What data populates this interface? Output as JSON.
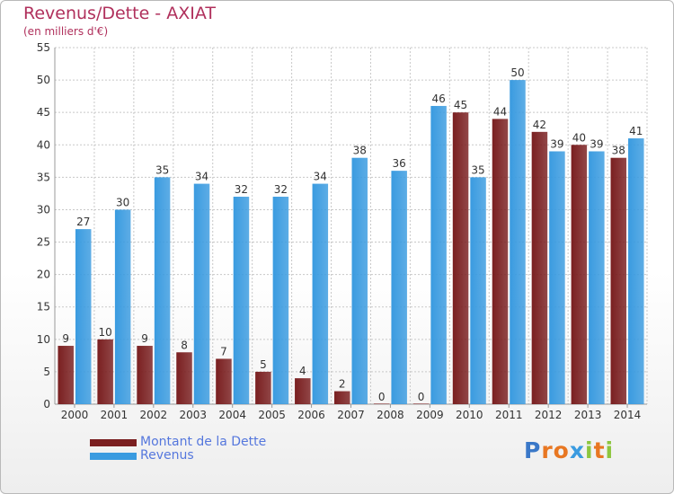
{
  "chart_data": {
    "type": "bar",
    "title": "Revenus/Dette - AXIAT",
    "subtitle": "(en milliers d'€)",
    "categories": [
      "2000",
      "2001",
      "2002",
      "2003",
      "2004",
      "2005",
      "2006",
      "2007",
      "2008",
      "2009",
      "2010",
      "2011",
      "2012",
      "2013",
      "2014"
    ],
    "series": [
      {
        "name": "Montant de la Dette",
        "color": "#7a1f20",
        "values": [
          9,
          10,
          9,
          8,
          7,
          5,
          4,
          2,
          0,
          0,
          45,
          44,
          42,
          40,
          38
        ]
      },
      {
        "name": "Revenus",
        "color": "#3a9be0",
        "values": [
          27,
          30,
          35,
          34,
          32,
          32,
          34,
          38,
          36,
          46,
          35,
          50,
          39,
          39,
          41
        ]
      }
    ],
    "ylim": [
      0,
      55
    ],
    "yticks": [
      0,
      5,
      10,
      15,
      20,
      25,
      30,
      35,
      40,
      45,
      50,
      55
    ],
    "grid": true,
    "legend": "bottom-left"
  },
  "logo": {
    "text": "Proxiti",
    "letters": [
      "P",
      "r",
      "o",
      "x",
      "i",
      "t",
      "i"
    ],
    "colors": [
      "#3a78c8",
      "#e87722",
      "#e87722",
      "#3a9be0",
      "#8dc63f",
      "#e87722",
      "#8dc63f"
    ]
  }
}
